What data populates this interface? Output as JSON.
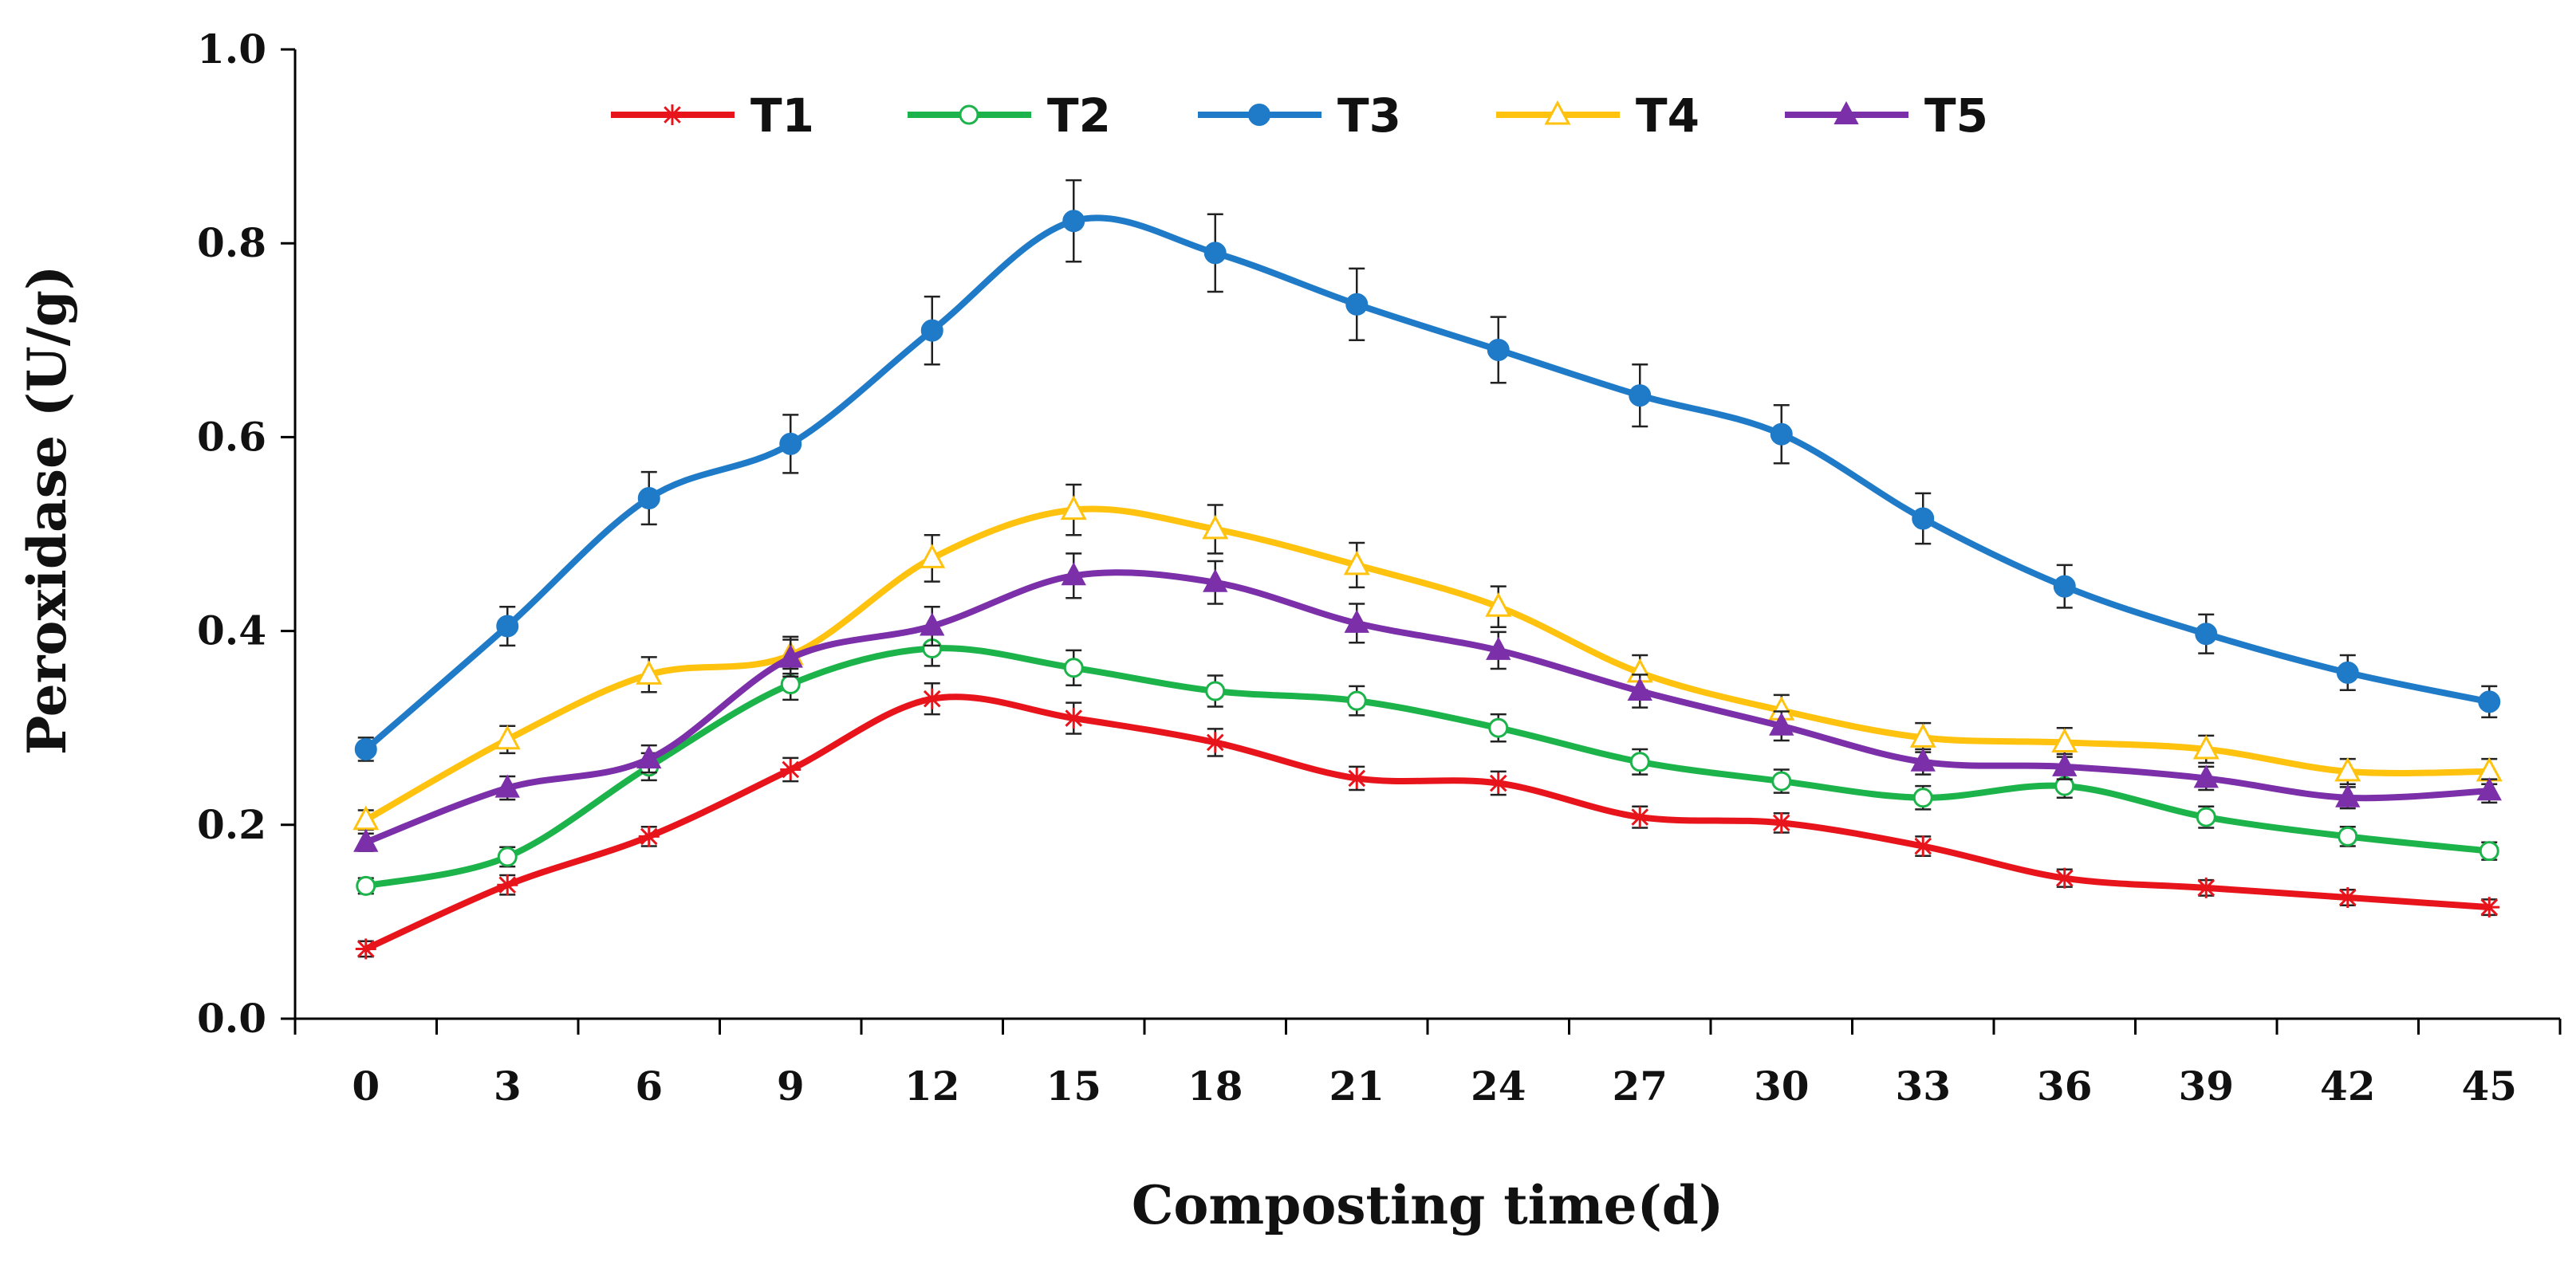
{
  "chart_data": {
    "type": "line",
    "xlabel": "Composting time(d)",
    "ylabel": "Peroxidase (U/g)",
    "x": [
      0,
      3,
      6,
      9,
      12,
      15,
      18,
      21,
      24,
      27,
      30,
      33,
      36,
      39,
      42,
      45
    ],
    "xticks": [
      "0",
      "3",
      "6",
      "9",
      "12",
      "15",
      "18",
      "21",
      "24",
      "27",
      "30",
      "33",
      "36",
      "39",
      "42",
      "45"
    ],
    "ylim": [
      0,
      1.0
    ],
    "yticks": [
      "0.0",
      "0.2",
      "0.4",
      "0.6",
      "0.8",
      "1.0"
    ],
    "grid": false,
    "legend_position": "top",
    "series": [
      {
        "name": "T1",
        "color": "#e8141b",
        "marker": "asterisk",
        "values": [
          0.072,
          0.138,
          0.188,
          0.257,
          0.33,
          0.31,
          0.285,
          0.248,
          0.243,
          0.208,
          0.202,
          0.178,
          0.145,
          0.135,
          0.125,
          0.115
        ],
        "errors": [
          0.008,
          0.01,
          0.01,
          0.012,
          0.016,
          0.016,
          0.014,
          0.012,
          0.012,
          0.011,
          0.01,
          0.01,
          0.009,
          0.008,
          0.008,
          0.008
        ]
      },
      {
        "name": "T2",
        "color": "#1bb34a",
        "marker": "circle-open",
        "values": [
          0.137,
          0.167,
          0.26,
          0.345,
          0.382,
          0.362,
          0.338,
          0.328,
          0.3,
          0.265,
          0.245,
          0.228,
          0.24,
          0.208,
          0.188,
          0.173
        ],
        "errors": [
          0.008,
          0.01,
          0.014,
          0.016,
          0.018,
          0.018,
          0.016,
          0.015,
          0.014,
          0.013,
          0.012,
          0.012,
          0.012,
          0.011,
          0.01,
          0.009
        ]
      },
      {
        "name": "T3",
        "color": "#1f7bc8",
        "marker": "circle-filled",
        "values": [
          0.278,
          0.405,
          0.537,
          0.593,
          0.71,
          0.823,
          0.79,
          0.737,
          0.69,
          0.643,
          0.603,
          0.516,
          0.446,
          0.397,
          0.357,
          0.327
        ],
        "errors": [
          0.012,
          0.02,
          0.027,
          0.03,
          0.035,
          0.042,
          0.04,
          0.037,
          0.034,
          0.032,
          0.03,
          0.026,
          0.022,
          0.02,
          0.018,
          0.016
        ]
      },
      {
        "name": "T4",
        "color": "#ffc20e",
        "marker": "triangle-open",
        "values": [
          0.205,
          0.288,
          0.355,
          0.375,
          0.475,
          0.525,
          0.505,
          0.468,
          0.425,
          0.357,
          0.318,
          0.29,
          0.285,
          0.278,
          0.255,
          0.255
        ],
        "errors": [
          0.01,
          0.014,
          0.018,
          0.019,
          0.024,
          0.026,
          0.025,
          0.023,
          0.021,
          0.018,
          0.016,
          0.015,
          0.015,
          0.014,
          0.013,
          0.013
        ]
      },
      {
        "name": "T5",
        "color": "#7b2fa8",
        "marker": "triangle-filled",
        "values": [
          0.182,
          0.238,
          0.268,
          0.372,
          0.405,
          0.457,
          0.45,
          0.408,
          0.38,
          0.338,
          0.302,
          0.265,
          0.26,
          0.248,
          0.228,
          0.235
        ],
        "errors": [
          0.009,
          0.012,
          0.014,
          0.019,
          0.02,
          0.023,
          0.022,
          0.02,
          0.019,
          0.017,
          0.015,
          0.013,
          0.013,
          0.012,
          0.011,
          0.012
        ]
      }
    ]
  }
}
